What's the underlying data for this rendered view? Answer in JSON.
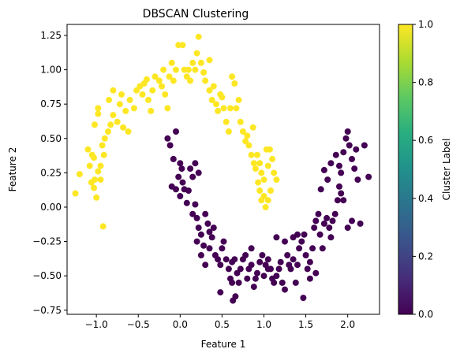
{
  "chart_data": {
    "type": "scatter",
    "title": "DBSCAN Clustering",
    "xlabel": "Feature 1",
    "ylabel": "Feature 2",
    "xlim": [
      -1.35,
      2.38
    ],
    "ylim": [
      -0.78,
      1.33
    ],
    "xticks": [
      "−1.0",
      "−0.5",
      "0.0",
      "0.5",
      "1.0",
      "1.5",
      "2.0"
    ],
    "xtick_values": [
      -1.0,
      -0.5,
      0.0,
      0.5,
      1.0,
      1.5,
      2.0
    ],
    "yticks": [
      "−0.75",
      "−0.50",
      "−0.25",
      "0.00",
      "0.25",
      "0.50",
      "0.75",
      "1.00",
      "1.25"
    ],
    "ytick_values": [
      -0.75,
      -0.5,
      -0.25,
      0.0,
      0.25,
      0.5,
      0.75,
      1.0,
      1.25
    ],
    "grid": false,
    "colorbar": {
      "label": "Cluster Label",
      "colormap": "viridis",
      "range": [
        0.0,
        1.0
      ],
      "ticks": [
        "0.0",
        "0.2",
        "0.4",
        "0.6",
        "0.8",
        "1.0"
      ],
      "tick_values": [
        0.0,
        0.2,
        0.4,
        0.6,
        0.8,
        1.0
      ]
    },
    "series": [
      {
        "cluster": 1,
        "color": "#fde725",
        "points": [
          [
            -1.25,
            0.1
          ],
          [
            -1.2,
            0.24
          ],
          [
            -1.1,
            0.42
          ],
          [
            -1.05,
            0.38
          ],
          [
            -1.08,
            0.3
          ],
          [
            -1.02,
            0.2
          ],
          [
            -1.06,
            0.18
          ],
          [
            -1.03,
            0.14
          ],
          [
            -1.0,
            0.07
          ],
          [
            -0.95,
            0.2
          ],
          [
            -0.98,
            0.26
          ],
          [
            -1.03,
            0.36
          ],
          [
            -0.95,
            0.3
          ],
          [
            -0.91,
            0.38
          ],
          [
            -0.93,
            0.45
          ],
          [
            -1.02,
            0.6
          ],
          [
            -0.98,
            0.68
          ],
          [
            -0.98,
            0.72
          ],
          [
            -0.9,
            0.5
          ],
          [
            -0.86,
            0.55
          ],
          [
            -0.83,
            0.6
          ],
          [
            -0.8,
            0.67
          ],
          [
            -0.85,
            0.78
          ],
          [
            -0.8,
            0.85
          ],
          [
            -0.75,
            0.62
          ],
          [
            -0.72,
            0.75
          ],
          [
            -0.7,
            0.82
          ],
          [
            -0.68,
            0.58
          ],
          [
            -0.65,
            0.7
          ],
          [
            -0.62,
            0.55
          ],
          [
            -0.6,
            0.78
          ],
          [
            -0.55,
            0.72
          ],
          [
            -0.52,
            0.85
          ],
          [
            -0.48,
            0.88
          ],
          [
            -0.45,
            0.82
          ],
          [
            -0.43,
            0.9
          ],
          [
            -0.4,
            0.93
          ],
          [
            -0.38,
            0.78
          ],
          [
            -0.35,
            0.7
          ],
          [
            -0.33,
            0.85
          ],
          [
            -0.3,
            0.95
          ],
          [
            -0.25,
            0.92
          ],
          [
            -0.22,
            0.88
          ],
          [
            -0.2,
            1.0
          ],
          [
            -0.18,
            0.82
          ],
          [
            -0.15,
            0.72
          ],
          [
            -0.13,
            0.95
          ],
          [
            -0.1,
            1.05
          ],
          [
            -0.08,
            0.92
          ],
          [
            -0.05,
            1.0
          ],
          [
            -0.02,
            1.18
          ],
          [
            0.03,
            1.18
          ],
          [
            0.05,
            1.0
          ],
          [
            0.08,
            0.95
          ],
          [
            0.1,
            1.0
          ],
          [
            0.12,
            0.92
          ],
          [
            0.15,
            1.05
          ],
          [
            0.18,
            1.0
          ],
          [
            0.2,
            1.12
          ],
          [
            0.22,
            1.24
          ],
          [
            0.25,
            1.05
          ],
          [
            0.28,
            0.98
          ],
          [
            0.3,
            0.92
          ],
          [
            0.35,
            0.85
          ],
          [
            0.38,
            0.78
          ],
          [
            0.4,
            0.88
          ],
          [
            0.43,
            0.75
          ],
          [
            0.45,
            0.7
          ],
          [
            0.48,
            0.82
          ],
          [
            0.5,
            0.8
          ],
          [
            0.52,
            0.72
          ],
          [
            0.55,
            0.62
          ],
          [
            0.58,
            0.55
          ],
          [
            0.6,
            0.72
          ],
          [
            0.62,
            0.95
          ],
          [
            0.65,
            0.9
          ],
          [
            0.67,
            0.72
          ],
          [
            0.7,
            0.78
          ],
          [
            0.72,
            0.62
          ],
          [
            0.75,
            0.55
          ],
          [
            0.78,
            0.48
          ],
          [
            0.8,
            0.52
          ],
          [
            0.82,
            0.45
          ],
          [
            0.85,
            0.38
          ],
          [
            0.87,
            0.58
          ],
          [
            0.88,
            0.32
          ],
          [
            0.9,
            0.28
          ],
          [
            0.92,
            0.38
          ],
          [
            0.95,
            0.32
          ],
          [
            0.97,
            0.25
          ],
          [
            1.0,
            0.2
          ],
          [
            1.03,
            0.42
          ],
          [
            1.05,
            0.3
          ],
          [
            1.07,
            0.42
          ],
          [
            1.1,
            0.35
          ],
          [
            1.12,
            0.25
          ],
          [
            1.15,
            0.2
          ],
          [
            0.93,
            0.18
          ],
          [
            0.95,
            0.12
          ],
          [
            0.97,
            0.05
          ],
          [
            1.0,
            0.08
          ],
          [
            1.02,
            0.0
          ],
          [
            1.05,
            0.05
          ],
          [
            1.08,
            0.12
          ],
          [
            -0.92,
            -0.14
          ],
          [
            0.35,
            1.07
          ]
        ]
      },
      {
        "cluster": 0,
        "color": "#440154",
        "points": [
          [
            -0.1,
            0.15
          ],
          [
            -0.05,
            0.13
          ],
          [
            -0.08,
            0.35
          ],
          [
            -0.12,
            0.45
          ],
          [
            -0.02,
            0.22
          ],
          [
            0.0,
            0.32
          ],
          [
            0.02,
            0.28
          ],
          [
            0.03,
            0.18
          ],
          [
            0.05,
            0.13
          ],
          [
            0.0,
            0.08
          ],
          [
            0.08,
            0.03
          ],
          [
            0.1,
            0.12
          ],
          [
            0.12,
            0.28
          ],
          [
            0.15,
            0.22
          ],
          [
            0.15,
            -0.05
          ],
          [
            0.18,
            0.02
          ],
          [
            0.2,
            -0.08
          ],
          [
            0.22,
            -0.15
          ],
          [
            0.25,
            -0.2
          ],
          [
            0.28,
            -0.28
          ],
          [
            0.3,
            -0.05
          ],
          [
            0.33,
            -0.12
          ],
          [
            0.35,
            -0.18
          ],
          [
            0.38,
            -0.22
          ],
          [
            0.4,
            -0.15
          ],
          [
            0.42,
            -0.35
          ],
          [
            0.45,
            -0.38
          ],
          [
            0.48,
            -0.42
          ],
          [
            0.5,
            -0.3
          ],
          [
            0.52,
            -0.25
          ],
          [
            0.55,
            -0.38
          ],
          [
            0.58,
            -0.45
          ],
          [
            0.6,
            -0.52
          ],
          [
            0.62,
            -0.4
          ],
          [
            0.65,
            -0.38
          ],
          [
            0.68,
            -0.48
          ],
          [
            0.7,
            -0.55
          ],
          [
            0.72,
            -0.45
          ],
          [
            0.75,
            -0.38
          ],
          [
            0.78,
            -0.35
          ],
          [
            0.8,
            -0.52
          ],
          [
            0.82,
            -0.45
          ],
          [
            0.85,
            -0.42
          ],
          [
            0.88,
            -0.58
          ],
          [
            0.9,
            -0.52
          ],
          [
            0.92,
            -0.48
          ],
          [
            0.95,
            -0.4
          ],
          [
            0.98,
            -0.35
          ],
          [
            1.0,
            -0.5
          ],
          [
            1.02,
            -0.42
          ],
          [
            1.05,
            -0.38
          ],
          [
            1.08,
            -0.45
          ],
          [
            1.1,
            -0.52
          ],
          [
            1.12,
            -0.55
          ],
          [
            1.15,
            -0.5
          ],
          [
            1.18,
            -0.45
          ],
          [
            1.2,
            -0.4
          ],
          [
            1.22,
            -0.55
          ],
          [
            1.25,
            -0.6
          ],
          [
            1.28,
            -0.35
          ],
          [
            1.3,
            -0.42
          ],
          [
            1.32,
            -0.45
          ],
          [
            1.35,
            -0.38
          ],
          [
            1.38,
            -0.55
          ],
          [
            1.4,
            -0.42
          ],
          [
            1.42,
            -0.3
          ],
          [
            1.45,
            -0.25
          ],
          [
            1.48,
            -0.2
          ],
          [
            1.5,
            -0.35
          ],
          [
            1.52,
            -0.45
          ],
          [
            1.55,
            -0.4
          ],
          [
            1.58,
            -0.3
          ],
          [
            1.6,
            -0.15
          ],
          [
            1.62,
            -0.1
          ],
          [
            1.65,
            -0.05
          ],
          [
            1.67,
            -0.2
          ],
          [
            1.7,
            -0.3
          ],
          [
            1.72,
            -0.12
          ],
          [
            1.75,
            -0.08
          ],
          [
            1.78,
            -0.15
          ],
          [
            1.8,
            -0.22
          ],
          [
            1.82,
            -0.1
          ],
          [
            1.85,
            -0.05
          ],
          [
            1.88,
            0.05
          ],
          [
            1.9,
            0.15
          ],
          [
            1.92,
            0.25
          ],
          [
            1.95,
            0.4
          ],
          [
            1.98,
            0.5
          ],
          [
            2.0,
            0.55
          ],
          [
            2.02,
            0.45
          ],
          [
            2.05,
            0.35
          ],
          [
            2.08,
            0.28
          ],
          [
            2.1,
            0.42
          ],
          [
            2.12,
            0.2
          ],
          [
            2.15,
            -0.12
          ],
          [
            2.2,
            0.45
          ],
          [
            2.25,
            0.22
          ],
          [
            1.9,
            0.3
          ],
          [
            1.92,
            0.1
          ],
          [
            1.95,
            0.05
          ],
          [
            2.0,
            -0.15
          ],
          [
            2.05,
            -0.1
          ],
          [
            1.72,
            0.27
          ],
          [
            1.8,
            0.32
          ],
          [
            1.86,
            0.38
          ],
          [
            1.76,
            0.2
          ],
          [
            1.68,
            0.13
          ],
          [
            0.48,
            -0.62
          ],
          [
            0.63,
            -0.68
          ],
          [
            1.47,
            -0.66
          ],
          [
            1.55,
            -0.52
          ],
          [
            1.62,
            -0.48
          ],
          [
            0.66,
            -0.65
          ],
          [
            0.62,
            -0.55
          ],
          [
            0.85,
            -0.3
          ],
          [
            1.15,
            -0.22
          ],
          [
            1.25,
            -0.25
          ],
          [
            1.35,
            -0.22
          ],
          [
            1.4,
            -0.2
          ],
          [
            0.25,
            -0.35
          ],
          [
            0.3,
            -0.42
          ],
          [
            0.35,
            -0.3
          ],
          [
            0.2,
            -0.25
          ],
          [
            0.18,
            0.32
          ],
          [
            0.22,
            0.25
          ],
          [
            -0.15,
            0.5
          ],
          [
            -0.05,
            0.55
          ],
          [
            1.05,
            -0.45
          ]
        ]
      }
    ]
  }
}
